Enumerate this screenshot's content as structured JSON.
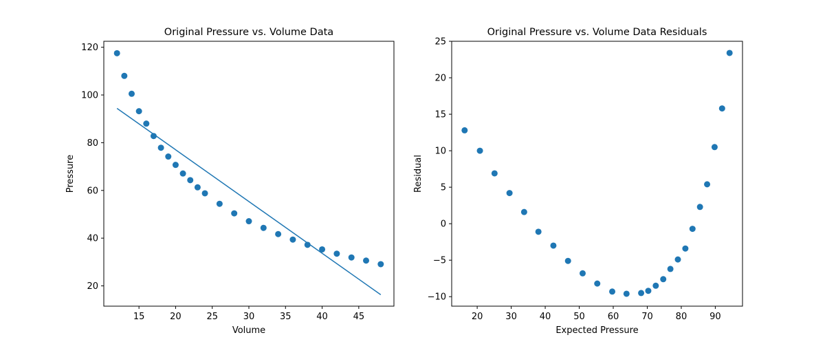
{
  "chart_data": [
    {
      "type": "scatter",
      "title": "Original Pressure vs. Volume Data",
      "xlabel": "Volume",
      "ylabel": "Pressure",
      "xlim": [
        10.2,
        49.8
      ],
      "ylim": [
        11.5,
        122.5
      ],
      "xticks": [
        15,
        20,
        25,
        30,
        35,
        40,
        45
      ],
      "yticks": [
        20,
        40,
        60,
        80,
        100,
        120
      ],
      "grid": false,
      "color": "#1f77b4",
      "points": {
        "x": [
          12,
          13,
          14,
          15,
          16,
          17,
          18,
          19,
          20,
          21,
          22,
          23,
          24,
          26,
          28,
          30,
          32,
          34,
          36,
          38,
          40,
          42,
          44,
          46,
          48
        ],
        "y": [
          117.5,
          108.0,
          100.5,
          93.2,
          88.0,
          82.8,
          77.9,
          74.2,
          70.7,
          67.1,
          64.3,
          61.3,
          58.8,
          54.4,
          50.4,
          47.1,
          44.3,
          41.7,
          39.4,
          37.2,
          35.3,
          33.5,
          31.9,
          30.6,
          29.1
        ]
      },
      "fit_line": {
        "x": [
          12,
          48
        ],
        "y": [
          94.4,
          16.3
        ]
      }
    },
    {
      "type": "scatter",
      "title": "Original Pressure vs. Volume Data Residuals",
      "xlabel": "Expected Pressure",
      "ylabel": "Residual",
      "xlim": [
        12.5,
        98.0
      ],
      "ylim": [
        -11.3,
        25.0
      ],
      "xticks": [
        20,
        30,
        40,
        50,
        60,
        70,
        80,
        90
      ],
      "yticks": [
        -10,
        -5,
        0,
        5,
        10,
        15,
        20,
        25
      ],
      "grid": false,
      "color": "#1f77b4",
      "points": {
        "x": [
          16.3,
          20.8,
          25.1,
          29.5,
          33.8,
          38.0,
          42.4,
          46.7,
          51.0,
          55.3,
          59.7,
          63.9,
          68.2,
          70.3,
          72.5,
          74.7,
          76.8,
          79.0,
          81.2,
          83.3,
          85.5,
          87.6,
          89.8,
          92.0,
          94.2
        ],
        "y": [
          12.8,
          10.0,
          6.9,
          4.2,
          1.6,
          -1.1,
          -3.0,
          -5.1,
          -6.8,
          -8.2,
          -9.3,
          -9.6,
          -9.5,
          -9.2,
          -8.5,
          -7.6,
          -6.2,
          -4.9,
          -3.4,
          -0.7,
          2.3,
          5.4,
          10.5,
          15.8,
          23.4
        ]
      }
    }
  ]
}
